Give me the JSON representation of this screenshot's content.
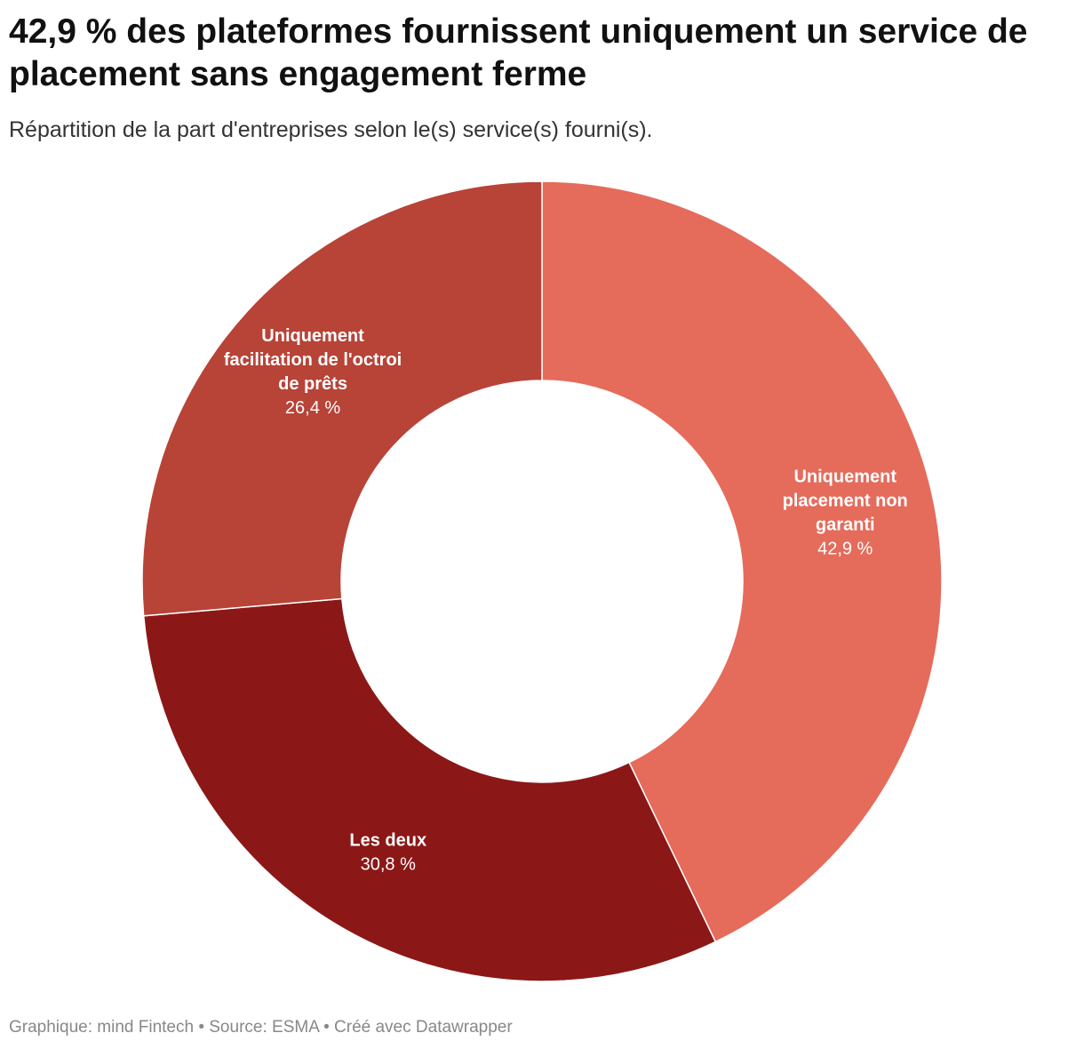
{
  "header": {
    "title": "42,9 % des plateformes fournissent uniquement un service de placement sans engagement ferme",
    "subtitle": "Répartition de la part d'entreprises selon le(s) service(s) fourni(s)."
  },
  "footer": {
    "credit": "Graphique: mind Fintech • Source: ESMA • Créé avec Datawrapper"
  },
  "chart_data": {
    "type": "pie",
    "variant": "donut",
    "title": "42,9 % des plateformes fournissent uniquement un service de placement sans engagement ferme",
    "subtitle": "Répartition de la part d'entreprises selon le(s) service(s) fourni(s).",
    "slices": [
      {
        "label_lines": [
          "Uniquement",
          "placement non",
          "garanti"
        ],
        "value": 42.9,
        "value_label": "42,9 %",
        "color": "#e56b5b"
      },
      {
        "label_lines": [
          "Les deux"
        ],
        "value": 30.8,
        "value_label": "30,8 %",
        "color": "#8c1717"
      },
      {
        "label_lines": [
          "Uniquement",
          "facilitation de l'octroi",
          "de prêts"
        ],
        "value": 26.4,
        "value_label": "26,4 %",
        "color": "#b84337"
      }
    ],
    "legend": "none",
    "labels_position": "inside"
  }
}
